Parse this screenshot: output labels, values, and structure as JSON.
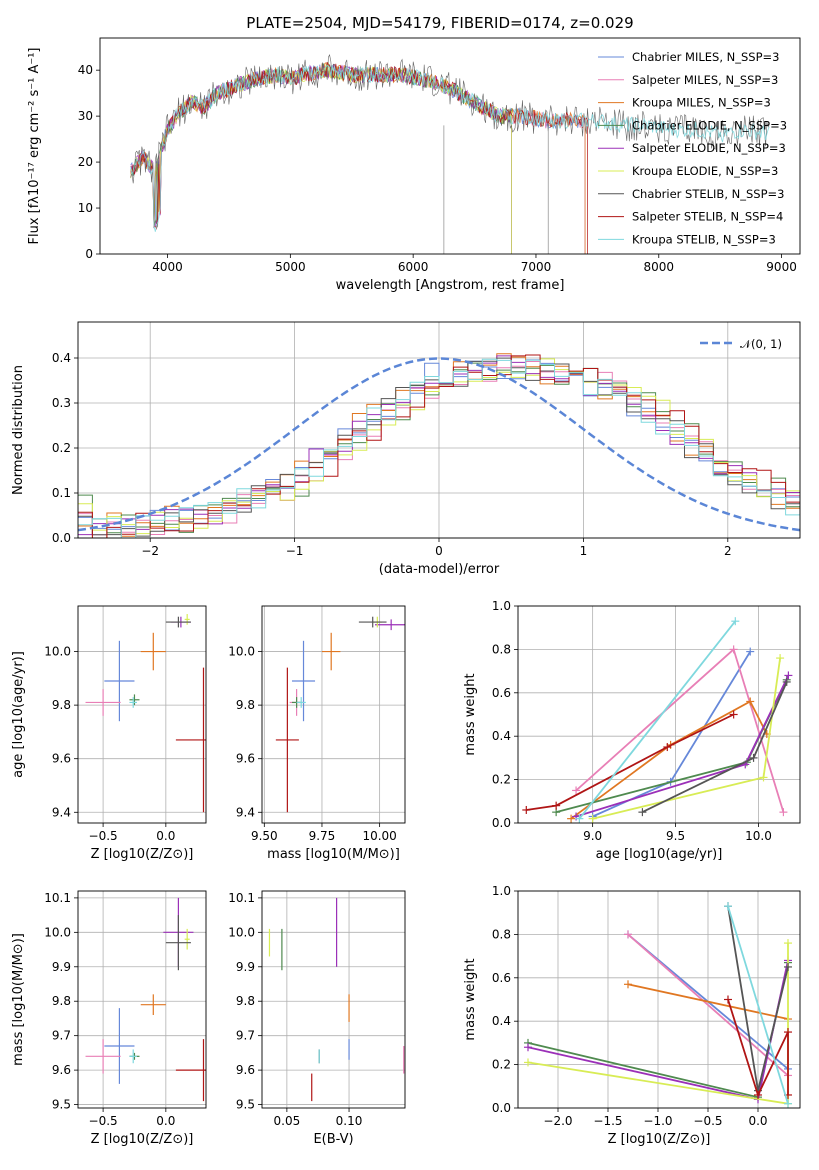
{
  "title": "PLATE=2504, MJD=54179, FIBERID=0174, z=0.029",
  "colors": [
    "#6688d9",
    "#e87fb6",
    "#e07722",
    "#4f8a4f",
    "#9b30b8",
    "#d8ec55",
    "#555555",
    "#b01515",
    "#7fd8de"
  ],
  "chart_data": [
    {
      "type": "line",
      "name_id": "spectrum",
      "xlabel": "wavelength [Angstrom, rest frame]",
      "ylabel": "Flux [f",
      "ylabel_full": "Flux [fλ10⁻¹⁷ erg cm⁻² s⁻¹ A⁻¹]",
      "xlim": [
        3450,
        9150
      ],
      "ylim": [
        0,
        47
      ],
      "xticks": [
        4000,
        5000,
        6000,
        7000,
        8000,
        9000
      ],
      "yticks": [
        0,
        10,
        20,
        30,
        40
      ],
      "legend": "top-right",
      "series": [
        {
          "name": "Chabrier MILES, N_SSP=3",
          "end": 7400
        },
        {
          "name": "Salpeter MILES, N_SSP=3",
          "end": 7400
        },
        {
          "name": "Kroupa MILES, N_SSP=3",
          "end": 7400
        },
        {
          "name": "Chabrier ELODIE, N_SSP=3",
          "end": 6800
        },
        {
          "name": "Salpeter ELODIE, N_SSP=3",
          "end": 6800
        },
        {
          "name": "Kroupa ELODIE, N_SSP=3",
          "end": 6800
        },
        {
          "name": "Chabrier STELIB, N_SSP=3",
          "end": 8900
        },
        {
          "name": "Salpeter STELIB, N_SSP=4",
          "end": 7420
        },
        {
          "name": "Kroupa STELIB, N_SSP=3",
          "end": 8900
        }
      ],
      "continuum": {
        "x": [
          3700,
          3800,
          3900,
          3950,
          4000,
          4100,
          4200,
          4300,
          4400,
          4500,
          4700,
          4900,
          5000,
          5100,
          5300,
          5500,
          5700,
          5900,
          6100,
          6300,
          6500,
          6700,
          6900,
          7100,
          7300,
          7500,
          7700,
          7900,
          8100,
          8300,
          8500,
          8700,
          8900
        ],
        "y": [
          18,
          21,
          18,
          23,
          27,
          31,
          33,
          32,
          35,
          36,
          38,
          39,
          38,
          39,
          40,
          39,
          39,
          39,
          38,
          36,
          33,
          30,
          30,
          29,
          29,
          29,
          28,
          28,
          27,
          27,
          26,
          27,
          26
        ]
      }
    },
    {
      "type": "line",
      "name_id": "residual-histogram",
      "xlabel": "(data-model)/error",
      "ylabel": "Normed distribution",
      "xlim": [
        -2.5,
        2.5
      ],
      "ylim": [
        0,
        0.48
      ],
      "xticks": [
        -2,
        -1,
        0,
        1,
        2
      ],
      "yticks": [
        0.0,
        0.1,
        0.2,
        0.3,
        0.4
      ],
      "legend_label": "𝒩(0, 1)",
      "legend": "top-right",
      "hist_envelope": {
        "x": [
          -2.5,
          -2.0,
          -1.5,
          -1.0,
          -0.5,
          0.0,
          0.5,
          1.0,
          1.5,
          2.0,
          2.5
        ],
        "y": [
          0.02,
          0.03,
          0.06,
          0.12,
          0.25,
          0.36,
          0.38,
          0.36,
          0.28,
          0.15,
          0.07
        ]
      }
    },
    {
      "type": "scatter",
      "name_id": "age-vs-Z",
      "xlabel": "Z [log10(Z/Z⊙)]",
      "ylabel": "age  [log10(age/yr)]",
      "xlim": [
        -0.7,
        0.32
      ],
      "ylim": [
        9.36,
        10.17
      ],
      "xticks": [
        -0.5,
        0.0
      ],
      "yticks": [
        9.4,
        9.6,
        9.8,
        10.0
      ],
      "errs": [
        {
          "c": 0,
          "x": -0.37,
          "y": 9.89,
          "dx": 0.12,
          "dy": 0.15
        },
        {
          "c": 1,
          "x": -0.5,
          "y": 9.81,
          "dx": 0.14,
          "dy": 0.05
        },
        {
          "c": 2,
          "x": -0.1,
          "y": 10.0,
          "dx": 0.1,
          "dy": 0.07
        },
        {
          "c": 3,
          "x": -0.25,
          "y": 9.82,
          "dx": 0.04,
          "dy": 0.02
        },
        {
          "c": 4,
          "x": 0.12,
          "y": 10.11,
          "dx": 0.08,
          "dy": 0.02
        },
        {
          "c": 5,
          "x": 0.17,
          "y": 10.12,
          "dx": 0.02,
          "dy": 0.02
        },
        {
          "c": 6,
          "x": 0.1,
          "y": 10.11,
          "dx": 0.1,
          "dy": 0.02
        },
        {
          "c": 7,
          "x": 0.3,
          "y": 9.67,
          "dx": 0.22,
          "dy": 0.27
        },
        {
          "c": 8,
          "x": -0.26,
          "y": 9.81,
          "dx": 0.03,
          "dy": 0.02
        }
      ]
    },
    {
      "type": "scatter",
      "name_id": "age-vs-mass",
      "xlabel": "mass [log10(M/M⊙)]",
      "ylabel": "",
      "xlim": [
        9.49,
        10.11
      ],
      "ylim": [
        9.36,
        10.17
      ],
      "xticks": [
        9.5,
        9.75,
        10.0
      ],
      "yticks": [
        9.4,
        9.6,
        9.8,
        10.0
      ],
      "errs": [
        {
          "c": 0,
          "x": 9.67,
          "y": 9.89,
          "dx": 0.05,
          "dy": 0.15
        },
        {
          "c": 1,
          "x": 9.64,
          "y": 9.81,
          "dx": 0.03,
          "dy": 0.05
        },
        {
          "c": 2,
          "x": 9.79,
          "y": 10.0,
          "dx": 0.04,
          "dy": 0.07
        },
        {
          "c": 3,
          "x": 9.64,
          "y": 9.81,
          "dx": 0.02,
          "dy": 0.02
        },
        {
          "c": 4,
          "x": 10.05,
          "y": 10.1,
          "dx": 0.07,
          "dy": 0.02
        },
        {
          "c": 5,
          "x": 9.99,
          "y": 10.11,
          "dx": 0.02,
          "dy": 0.02
        },
        {
          "c": 6,
          "x": 9.97,
          "y": 10.11,
          "dx": 0.06,
          "dy": 0.02
        },
        {
          "c": 7,
          "x": 9.6,
          "y": 9.67,
          "dx": 0.05,
          "dy": 0.27
        },
        {
          "c": 8,
          "x": 9.66,
          "y": 9.81,
          "dx": 0.02,
          "dy": 0.02
        }
      ]
    },
    {
      "type": "line",
      "name_id": "weight-vs-age",
      "xlabel": "age  [log10(age/yr)]",
      "ylabel": "mass weight",
      "xlim": [
        8.55,
        10.25
      ],
      "ylim": [
        0,
        1
      ],
      "xticks": [
        9.0,
        9.5,
        10.0
      ],
      "yticks": [
        0.0,
        0.2,
        0.4,
        0.6,
        0.8,
        1.0
      ],
      "series": [
        {
          "c": 0,
          "x": [
            9.0,
            9.47,
            9.95
          ],
          "y": [
            0.03,
            0.19,
            0.79
          ]
        },
        {
          "c": 1,
          "x": [
            8.9,
            9.85,
            10.15
          ],
          "y": [
            0.15,
            0.8,
            0.05
          ]
        },
        {
          "c": 2,
          "x": [
            8.87,
            9.47,
            9.95,
            10.05
          ],
          "y": [
            0.02,
            0.36,
            0.56,
            0.41
          ]
        },
        {
          "c": 3,
          "x": [
            8.78,
            9.93,
            10.17
          ],
          "y": [
            0.05,
            0.28,
            0.66
          ]
        },
        {
          "c": 4,
          "x": [
            8.9,
            9.92,
            10.18
          ],
          "y": [
            0.03,
            0.27,
            0.68
          ]
        },
        {
          "c": 5,
          "x": [
            9.0,
            10.03,
            10.13
          ],
          "y": [
            0.02,
            0.21,
            0.76
          ]
        },
        {
          "c": 6,
          "x": [
            9.3,
            9.97,
            10.17
          ],
          "y": [
            0.05,
            0.3,
            0.65
          ]
        },
        {
          "c": 7,
          "x": [
            8.6,
            8.78,
            9.45,
            9.85
          ],
          "y": [
            0.06,
            0.08,
            0.35,
            0.5
          ]
        },
        {
          "c": 8,
          "x": [
            8.92,
            9.86
          ],
          "y": [
            0.02,
            0.93
          ]
        }
      ]
    },
    {
      "type": "scatter",
      "name_id": "mass-vs-Z",
      "xlabel": "Z [log10(Z/Z⊙)]",
      "ylabel": "mass [log10(M/M⊙)]",
      "xlim": [
        -0.7,
        0.32
      ],
      "ylim": [
        9.49,
        10.12
      ],
      "xticks": [
        -0.5,
        0.0
      ],
      "yticks": [
        9.5,
        9.6,
        9.7,
        9.8,
        9.9,
        10.0,
        10.1
      ],
      "errs": [
        {
          "c": 0,
          "x": -0.37,
          "y": 9.67,
          "dx": 0.12,
          "dy": 0.11
        },
        {
          "c": 1,
          "x": -0.5,
          "y": 9.64,
          "dx": 0.14,
          "dy": 0.05
        },
        {
          "c": 2,
          "x": -0.1,
          "y": 9.79,
          "dx": 0.1,
          "dy": 0.03
        },
        {
          "c": 3,
          "x": -0.25,
          "y": 9.64,
          "dx": 0.04,
          "dy": 0.01
        },
        {
          "c": 4,
          "x": 0.1,
          "y": 10.0,
          "dx": 0.12,
          "dy": 0.1
        },
        {
          "c": 5,
          "x": 0.17,
          "y": 9.98,
          "dx": 0.02,
          "dy": 0.03
        },
        {
          "c": 6,
          "x": 0.1,
          "y": 9.97,
          "dx": 0.1,
          "dy": 0.08
        },
        {
          "c": 7,
          "x": 0.3,
          "y": 9.6,
          "dx": 0.22,
          "dy": 0.09
        },
        {
          "c": 8,
          "x": -0.26,
          "y": 9.64,
          "dx": 0.03,
          "dy": 0.02
        }
      ]
    },
    {
      "type": "scatter",
      "name_id": "mass-vs-ebv",
      "xlabel": "E(B-V)",
      "ylabel": "",
      "xlim": [
        0.03,
        0.145
      ],
      "ylim": [
        9.49,
        10.12
      ],
      "xticks": [
        0.05,
        0.1
      ],
      "yticks": [
        9.5,
        9.6,
        9.7,
        9.8,
        9.9,
        10.0,
        10.1
      ],
      "errs": [
        {
          "c": 0,
          "x": 0.1,
          "y": 9.66,
          "dx": 0,
          "dy": 0.03
        },
        {
          "c": 1,
          "x": 0.144,
          "y": 9.63,
          "dx": 0,
          "dy": 0.04
        },
        {
          "c": 2,
          "x": 0.1,
          "y": 9.78,
          "dx": 0,
          "dy": 0.04
        },
        {
          "c": 3,
          "x": 0.046,
          "y": 9.95,
          "dx": 0,
          "dy": 0.06
        },
        {
          "c": 4,
          "x": 0.09,
          "y": 10.0,
          "dx": 0,
          "dy": 0.1
        },
        {
          "c": 5,
          "x": 0.036,
          "y": 9.97,
          "dx": 0,
          "dy": 0.04
        },
        {
          "c": 6,
          "x": 0.076,
          "y": 9.64,
          "dx": 0,
          "dy": 0.02
        },
        {
          "c": 7,
          "x": 0.07,
          "y": 9.55,
          "dx": 0,
          "dy": 0.04
        },
        {
          "c": 8,
          "x": 0.076,
          "y": 9.64,
          "dx": 0,
          "dy": 0.02
        }
      ]
    },
    {
      "type": "line",
      "name_id": "weight-vs-Z",
      "xlabel": "Z [log10(Z/Z⊙)]",
      "ylabel": "mass weight",
      "xlim": [
        -2.4,
        0.42
      ],
      "ylim": [
        0,
        1
      ],
      "xticks": [
        -2.0,
        -1.5,
        -1.0,
        -0.5,
        0.0
      ],
      "yticks": [
        0.0,
        0.2,
        0.4,
        0.6,
        0.8,
        1.0
      ],
      "series": [
        {
          "c": 0,
          "x": [
            -1.3,
            0.3
          ],
          "y": [
            0.8,
            0.18
          ]
        },
        {
          "c": 1,
          "x": [
            -1.3,
            0.3
          ],
          "y": [
            0.8,
            0.15
          ]
        },
        {
          "c": 2,
          "x": [
            -1.3,
            0.3
          ],
          "y": [
            0.57,
            0.41
          ]
        },
        {
          "c": 3,
          "x": [
            -2.3,
            0.0,
            0.3
          ],
          "y": [
            0.3,
            0.05,
            0.67
          ]
        },
        {
          "c": 4,
          "x": [
            -2.3,
            0.0,
            0.3
          ],
          "y": [
            0.28,
            0.04,
            0.68
          ]
        },
        {
          "c": 5,
          "x": [
            -2.3,
            0.3,
            0.3
          ],
          "y": [
            0.21,
            0.02,
            0.76
          ]
        },
        {
          "c": 6,
          "x": [
            -0.3,
            0.0,
            0.3
          ],
          "y": [
            0.93,
            0.08,
            0.65
          ]
        },
        {
          "c": 7,
          "x": [
            -0.3,
            0.0,
            0.3,
            0.3
          ],
          "y": [
            0.5,
            0.06,
            0.35,
            0.06
          ]
        },
        {
          "c": 8,
          "x": [
            -0.3,
            0.3
          ],
          "y": [
            0.93,
            0.02
          ]
        }
      ]
    }
  ]
}
